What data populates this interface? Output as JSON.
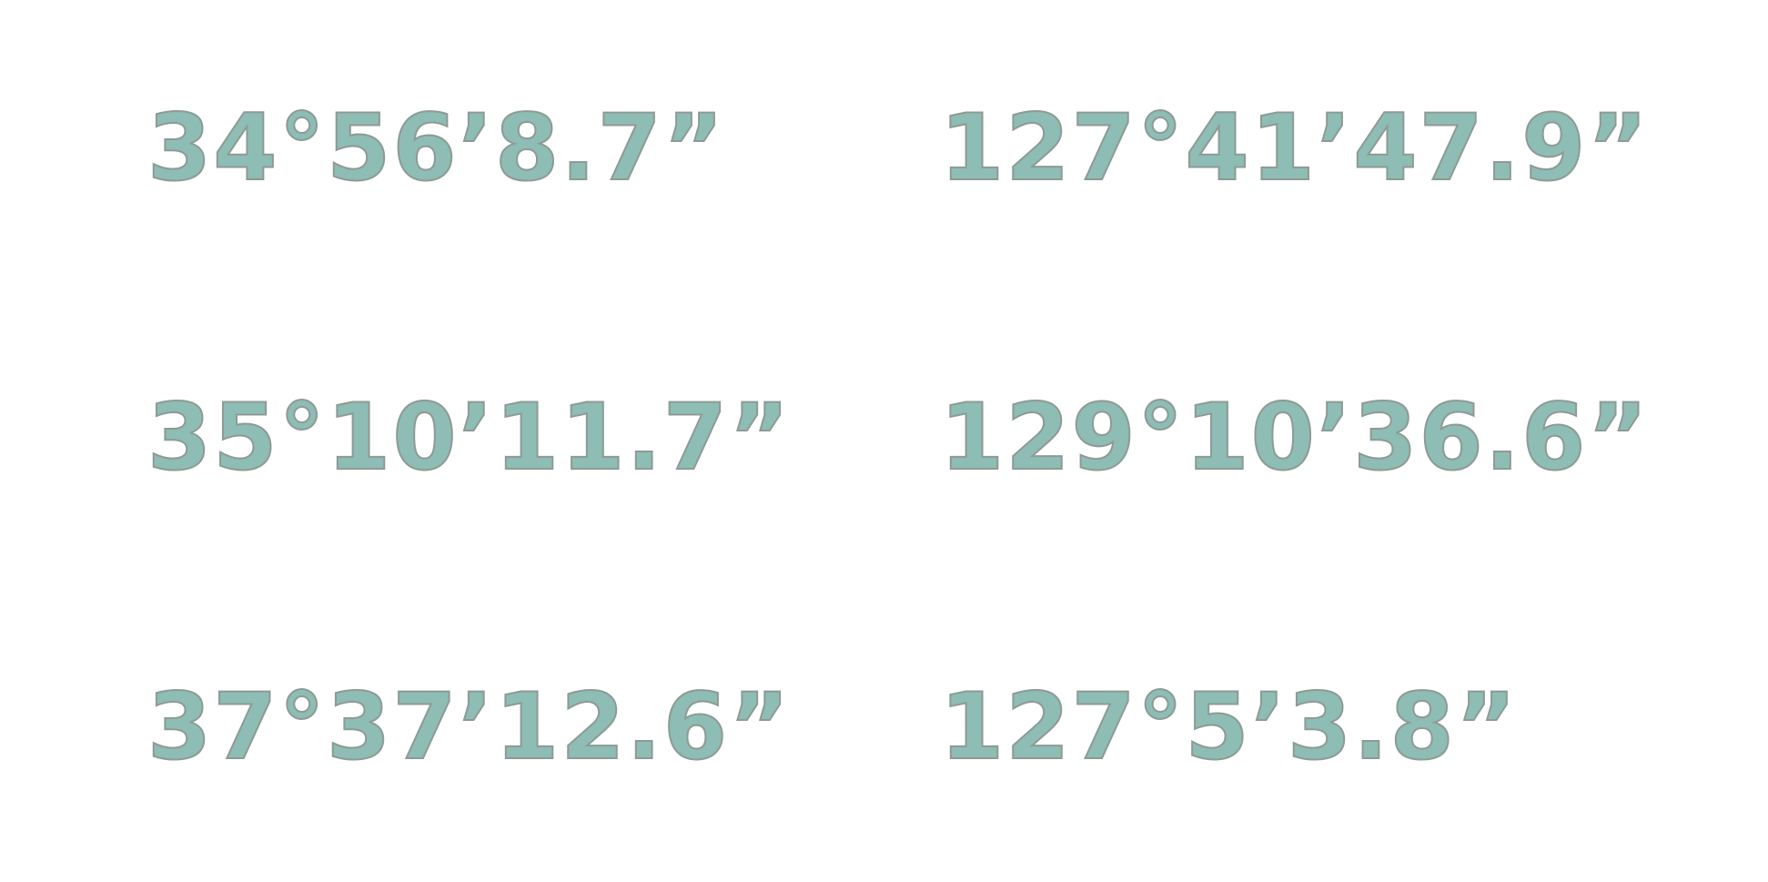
{
  "coordinates": [
    {
      "latitude": "34°56’8.7”",
      "longitude": "127°41’47.9”"
    },
    {
      "latitude": "35°10’11.7”",
      "longitude": "129°10’36.6”"
    },
    {
      "latitude": "37°37’12.6”",
      "longitude": "127°5’3.8”"
    }
  ],
  "colors": {
    "text_fill": "#8dbdb4",
    "text_outline": "#8e9a95",
    "background": "#ffffff"
  }
}
